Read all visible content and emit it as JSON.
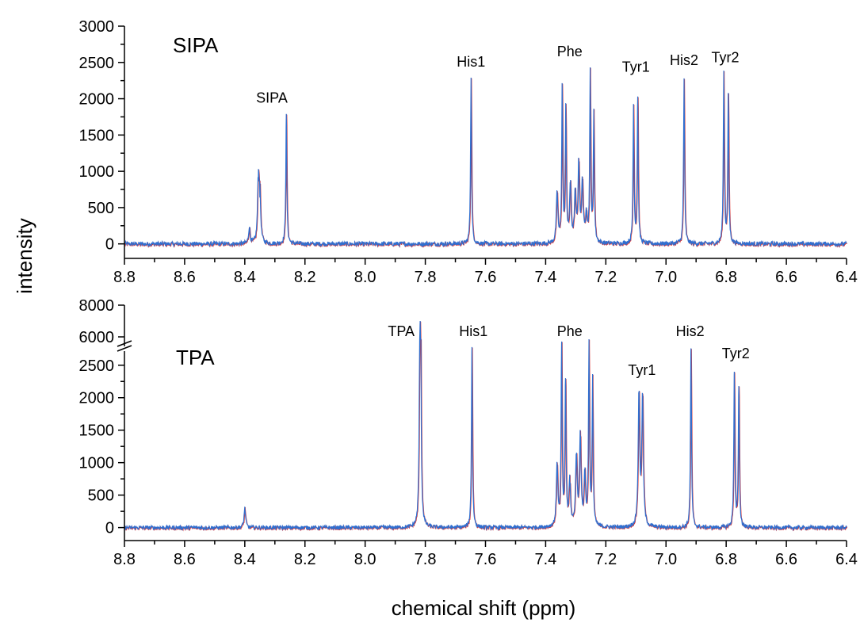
{
  "ylabel": "intensity",
  "xlabel": "chemical shift (ppm)",
  "colors": {
    "spectrum": "#2f6fd0",
    "spectrum_under": "#e0302c",
    "axis": "#000000"
  },
  "chart_data": [
    {
      "type": "line",
      "title": "SIPA",
      "xlim": [
        8.8,
        6.4
      ],
      "x_reversed": true,
      "ylim": [
        -200,
        3000
      ],
      "xticks": [
        "8.8",
        "8.6",
        "8.4",
        "8.2",
        "8.0",
        "7.8",
        "7.6",
        "7.4",
        "7.2",
        "7.0",
        "6.8",
        "6.6",
        "6.4"
      ],
      "yticks": [
        "0",
        "500",
        "1000",
        "1500",
        "2000",
        "2500",
        "3000"
      ],
      "peaks": [
        {
          "x": 8.385,
          "y": 220,
          "w": 0.003
        },
        {
          "x": 8.355,
          "y": 880,
          "w": 0.003
        },
        {
          "x": 8.35,
          "y": 640,
          "w": 0.003
        },
        {
          "x": 8.262,
          "y": 1790,
          "w": 0.002
        },
        {
          "x": 7.648,
          "y": 2290,
          "w": 0.002
        },
        {
          "x": 7.362,
          "y": 700,
          "w": 0.003
        },
        {
          "x": 7.345,
          "y": 2170,
          "w": 0.002
        },
        {
          "x": 7.333,
          "y": 1870,
          "w": 0.002
        },
        {
          "x": 7.318,
          "y": 800,
          "w": 0.003
        },
        {
          "x": 7.302,
          "y": 650,
          "w": 0.003
        },
        {
          "x": 7.29,
          "y": 1090,
          "w": 0.003
        },
        {
          "x": 7.278,
          "y": 850,
          "w": 0.003
        },
        {
          "x": 7.265,
          "y": 400,
          "w": 0.003
        },
        {
          "x": 7.252,
          "y": 2320,
          "w": 0.002
        },
        {
          "x": 7.24,
          "y": 1790,
          "w": 0.002
        },
        {
          "x": 7.108,
          "y": 1880,
          "w": 0.002
        },
        {
          "x": 7.094,
          "y": 2030,
          "w": 0.002
        },
        {
          "x": 6.94,
          "y": 2280,
          "w": 0.002
        },
        {
          "x": 6.808,
          "y": 2340,
          "w": 0.002
        },
        {
          "x": 6.793,
          "y": 2080,
          "w": 0.002
        }
      ],
      "annotations": [
        {
          "text": "SIPA",
          "x": 8.31,
          "y": 1900
        },
        {
          "text": "His1",
          "x": 7.648,
          "y": 2400
        },
        {
          "text": "Phe",
          "x": 7.32,
          "y": 2540
        },
        {
          "text": "Tyr1",
          "x": 7.1,
          "y": 2330
        },
        {
          "text": "His2",
          "x": 6.94,
          "y": 2420
        },
        {
          "text": "Tyr2",
          "x": 6.803,
          "y": 2460
        }
      ]
    },
    {
      "type": "line",
      "title": "TPA",
      "xlim": [
        8.8,
        6.4
      ],
      "x_reversed": true,
      "ylim": [
        -200,
        8000
      ],
      "y_axis_break": [
        2900,
        6000
      ],
      "xticks": [
        "8.8",
        "8.6",
        "8.4",
        "8.2",
        "8.0",
        "7.8",
        "7.6",
        "7.4",
        "7.2",
        "7.0",
        "6.8",
        "6.6",
        "6.4"
      ],
      "yticks": [
        "0",
        "500",
        "1000",
        "1500",
        "2000",
        "2500",
        "6000",
        "8000"
      ],
      "peaks": [
        {
          "x": 8.4,
          "y": 300,
          "w": 0.003
        },
        {
          "x": 7.817,
          "y": 7000,
          "w": 0.002
        },
        {
          "x": 7.645,
          "y": 2780,
          "w": 0.002
        },
        {
          "x": 7.362,
          "y": 960,
          "w": 0.003
        },
        {
          "x": 7.347,
          "y": 2830,
          "w": 0.002
        },
        {
          "x": 7.334,
          "y": 2300,
          "w": 0.002
        },
        {
          "x": 7.32,
          "y": 700,
          "w": 0.003
        },
        {
          "x": 7.298,
          "y": 1100,
          "w": 0.003
        },
        {
          "x": 7.285,
          "y": 1420,
          "w": 0.003
        },
        {
          "x": 7.27,
          "y": 800,
          "w": 0.003
        },
        {
          "x": 7.256,
          "y": 2830,
          "w": 0.002
        },
        {
          "x": 7.244,
          "y": 2260,
          "w": 0.002
        },
        {
          "x": 7.09,
          "y": 2050,
          "w": 0.003
        },
        {
          "x": 7.078,
          "y": 2020,
          "w": 0.003
        },
        {
          "x": 6.917,
          "y": 2760,
          "w": 0.002
        },
        {
          "x": 6.773,
          "y": 2400,
          "w": 0.002
        },
        {
          "x": 6.758,
          "y": 2180,
          "w": 0.002
        }
      ],
      "annotations": [
        {
          "text": "TPA",
          "x": 7.88,
          "y": 3000
        },
        {
          "text": "His1",
          "x": 7.64,
          "y": 3000
        },
        {
          "text": "Phe",
          "x": 7.32,
          "y": 3060
        },
        {
          "text": "Tyr1",
          "x": 7.08,
          "y": 2300
        },
        {
          "text": "His2",
          "x": 6.92,
          "y": 2950
        },
        {
          "text": "Tyr2",
          "x": 6.768,
          "y": 2560
        }
      ]
    }
  ]
}
